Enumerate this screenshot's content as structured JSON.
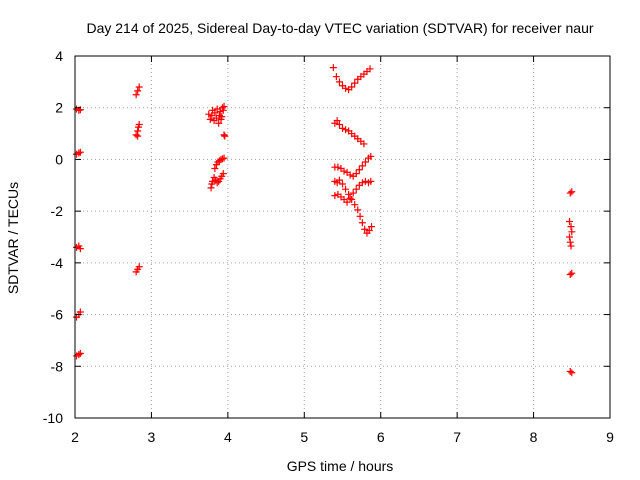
{
  "chart_data": {
    "type": "scatter",
    "title": "Day 214 of 2025, Sidereal Day-to-day VTEC variation (SDTVAR) for receiver naur",
    "xlabel": "GPS time / hours",
    "ylabel": "SDTVAR / TECUs",
    "xlim": [
      2,
      9
    ],
    "ylim": [
      -10,
      4
    ],
    "x_ticks": [
      "2",
      "3",
      "4",
      "5",
      "6",
      "7",
      "8",
      "9"
    ],
    "y_ticks": [
      "4",
      "2",
      "0",
      "-2",
      "-4",
      "-6",
      "-8",
      "-10"
    ],
    "grid": true,
    "legend": "none",
    "marker": "plus",
    "color": "#ff0000",
    "series": [
      {
        "points": [
          [
            2.02,
            1.95
          ],
          [
            2.05,
            1.9
          ],
          [
            2.07,
            1.92
          ],
          [
            2.02,
            0.2
          ],
          [
            2.05,
            0.25
          ],
          [
            2.07,
            0.28
          ],
          [
            2.02,
            -3.4
          ],
          [
            2.05,
            -3.35
          ],
          [
            2.07,
            -3.45
          ],
          [
            2.02,
            -6.1
          ],
          [
            2.05,
            -6.0
          ],
          [
            2.07,
            -5.9
          ],
          [
            2.02,
            -7.6
          ],
          [
            2.05,
            -7.55
          ],
          [
            2.07,
            -7.5
          ],
          [
            2.8,
            2.5
          ],
          [
            2.82,
            2.65
          ],
          [
            2.84,
            2.8
          ],
          [
            2.8,
            0.95
          ],
          [
            2.82,
            1.1
          ],
          [
            2.83,
            1.25
          ],
          [
            2.84,
            1.35
          ],
          [
            2.82,
            0.9
          ],
          [
            2.8,
            -4.35
          ],
          [
            2.82,
            -4.25
          ],
          [
            2.84,
            -4.15
          ],
          [
            3.75,
            1.75
          ],
          [
            3.77,
            1.55
          ],
          [
            3.79,
            1.7
          ],
          [
            3.8,
            1.9
          ],
          [
            3.82,
            1.5
          ],
          [
            3.83,
            1.8
          ],
          [
            3.85,
            1.6
          ],
          [
            3.86,
            1.95
          ],
          [
            3.88,
            1.4
          ],
          [
            3.89,
            1.7
          ],
          [
            3.9,
            1.85
          ],
          [
            3.91,
            1.55
          ],
          [
            3.93,
            2.0
          ],
          [
            3.94,
            1.9
          ],
          [
            3.95,
            2.05
          ],
          [
            3.92,
            1.65
          ],
          [
            3.95,
            0.95
          ],
          [
            3.96,
            0.9
          ],
          [
            3.78,
            -1.1
          ],
          [
            3.79,
            -0.95
          ],
          [
            3.8,
            -0.85
          ],
          [
            3.82,
            -0.7
          ],
          [
            3.84,
            -0.8
          ],
          [
            3.86,
            -0.9
          ],
          [
            3.88,
            -0.85
          ],
          [
            3.9,
            -0.75
          ],
          [
            3.92,
            -0.65
          ],
          [
            3.94,
            -0.55
          ],
          [
            3.83,
            -0.35
          ],
          [
            3.85,
            -0.2
          ],
          [
            3.87,
            -0.1
          ],
          [
            3.89,
            -0.05
          ],
          [
            3.91,
            0.0
          ],
          [
            3.93,
            0.02
          ],
          [
            3.95,
            0.05
          ],
          [
            5.38,
            3.55
          ],
          [
            5.42,
            3.2
          ],
          [
            5.46,
            3.0
          ],
          [
            5.5,
            2.85
          ],
          [
            5.54,
            2.75
          ],
          [
            5.58,
            2.7
          ],
          [
            5.62,
            2.8
          ],
          [
            5.66,
            2.95
          ],
          [
            5.7,
            3.1
          ],
          [
            5.74,
            3.2
          ],
          [
            5.78,
            3.3
          ],
          [
            5.82,
            3.4
          ],
          [
            5.86,
            3.5
          ],
          [
            5.4,
            1.4
          ],
          [
            5.43,
            1.5
          ],
          [
            5.46,
            1.35
          ],
          [
            5.5,
            1.2
          ],
          [
            5.54,
            1.15
          ],
          [
            5.58,
            1.1
          ],
          [
            5.62,
            1.0
          ],
          [
            5.66,
            0.9
          ],
          [
            5.7,
            0.8
          ],
          [
            5.74,
            0.7
          ],
          [
            5.78,
            0.6
          ],
          [
            5.4,
            -0.3
          ],
          [
            5.44,
            -0.3
          ],
          [
            5.48,
            -0.35
          ],
          [
            5.52,
            -0.45
          ],
          [
            5.56,
            -0.5
          ],
          [
            5.6,
            -0.6
          ],
          [
            5.64,
            -0.65
          ],
          [
            5.68,
            -0.55
          ],
          [
            5.72,
            -0.4
          ],
          [
            5.76,
            -0.25
          ],
          [
            5.8,
            -0.1
          ],
          [
            5.84,
            0.05
          ],
          [
            5.87,
            0.12
          ],
          [
            5.4,
            -0.85
          ],
          [
            5.43,
            -0.9
          ],
          [
            5.46,
            -0.8
          ],
          [
            5.5,
            -0.95
          ],
          [
            5.54,
            -1.15
          ],
          [
            5.58,
            -1.35
          ],
          [
            5.62,
            -1.55
          ],
          [
            5.66,
            -1.75
          ],
          [
            5.7,
            -1.95
          ],
          [
            5.73,
            -2.2
          ],
          [
            5.76,
            -2.45
          ],
          [
            5.79,
            -2.7
          ],
          [
            5.82,
            -2.85
          ],
          [
            5.85,
            -2.75
          ],
          [
            5.88,
            -2.6
          ],
          [
            5.4,
            -1.4
          ],
          [
            5.44,
            -1.35
          ],
          [
            5.48,
            -1.45
          ],
          [
            5.52,
            -1.55
          ],
          [
            5.56,
            -1.65
          ],
          [
            5.6,
            -1.5
          ],
          [
            5.64,
            -1.3
          ],
          [
            5.68,
            -1.15
          ],
          [
            5.72,
            -1.0
          ],
          [
            5.76,
            -0.9
          ],
          [
            5.8,
            -0.85
          ],
          [
            5.84,
            -0.9
          ],
          [
            5.87,
            -0.85
          ],
          [
            8.48,
            -1.3
          ],
          [
            8.5,
            -1.25
          ],
          [
            8.47,
            -2.4
          ],
          [
            8.49,
            -2.6
          ],
          [
            8.5,
            -2.8
          ],
          [
            8.47,
            -3.0
          ],
          [
            8.48,
            -3.2
          ],
          [
            8.49,
            -3.35
          ],
          [
            8.48,
            -4.45
          ],
          [
            8.5,
            -4.4
          ],
          [
            8.48,
            -8.2
          ],
          [
            8.5,
            -8.25
          ]
        ]
      }
    ]
  }
}
